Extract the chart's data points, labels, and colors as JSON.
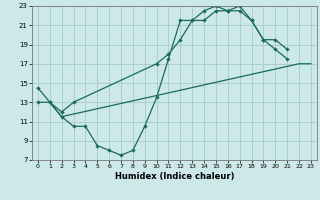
{
  "xlabel": "Humidex (Indice chaleur)",
  "bg_color": "#cce8e8",
  "grid_color": "#aacece",
  "line_color": "#1a6b5a",
  "line1_x": [
    0,
    1,
    2,
    3,
    4,
    5,
    6,
    7,
    8,
    9,
    10,
    11,
    12,
    13,
    14,
    15,
    16,
    17,
    18,
    19,
    20,
    21
  ],
  "line1_y": [
    14.5,
    13.0,
    11.5,
    10.5,
    10.5,
    8.5,
    8.0,
    7.5,
    8.0,
    10.5,
    13.5,
    17.5,
    21.5,
    21.5,
    22.5,
    23.0,
    22.5,
    23.0,
    21.5,
    19.5,
    18.5,
    17.5
  ],
  "line2_x": [
    1,
    2,
    22,
    23
  ],
  "line2_y": [
    13.0,
    11.5,
    17.0,
    17.0
  ],
  "line3_x": [
    0,
    1,
    2,
    3,
    10,
    11,
    12,
    13,
    14,
    15,
    16,
    17,
    18,
    19,
    20,
    21
  ],
  "line3_y": [
    13.0,
    13.0,
    12.0,
    13.0,
    17.0,
    18.0,
    19.5,
    21.5,
    21.5,
    22.5,
    22.5,
    22.5,
    21.5,
    19.5,
    19.5,
    18.5
  ],
  "xmin": -0.5,
  "xmax": 23.5,
  "ymin": 7,
  "ymax": 23,
  "xticks": [
    0,
    1,
    2,
    3,
    4,
    5,
    6,
    7,
    8,
    9,
    10,
    11,
    12,
    13,
    14,
    15,
    16,
    17,
    18,
    19,
    20,
    21,
    22,
    23
  ],
  "yticks": [
    7,
    9,
    11,
    13,
    15,
    17,
    19,
    21,
    23
  ]
}
